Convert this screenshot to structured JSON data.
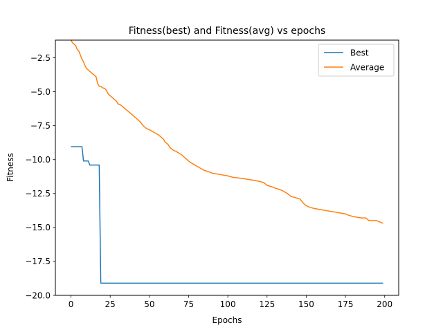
{
  "chart_data": {
    "type": "line",
    "title": "Fitness(best) and Fitness(avg) vs epochs",
    "xlabel": "Epochs",
    "ylabel": "Fitness",
    "xlim": [
      -9.95,
      208.95
    ],
    "ylim": [
      -20.0,
      -1.2
    ],
    "xticks": [
      0,
      25,
      50,
      75,
      100,
      125,
      150,
      175,
      200
    ],
    "yticks": [
      -20.0,
      -17.5,
      -15.0,
      -12.5,
      -10.0,
      -7.5,
      -5.0,
      -2.5
    ],
    "ytick_labels": [
      "−20.0",
      "−17.5",
      "−15.0",
      "−12.5",
      "−10.0",
      "−7.5",
      "−5.0",
      "−2.5"
    ],
    "grid": false,
    "legend_position": "top-right",
    "series": [
      {
        "name": "Best",
        "color": "#1f77b4",
        "x": [
          0,
          7,
          8,
          11,
          12,
          18,
          19,
          199
        ],
        "y": [
          -9.05,
          -9.05,
          -10.1,
          -10.1,
          -10.4,
          -10.4,
          -19.1,
          -19.1
        ]
      },
      {
        "name": "Average",
        "color": "#ff7f0e",
        "x": [
          0,
          1,
          2,
          3,
          4,
          5,
          6,
          7,
          8,
          9,
          10,
          11,
          12,
          13,
          14,
          15,
          16,
          17,
          18,
          19,
          20,
          22,
          24,
          25,
          27,
          29,
          30,
          32,
          34,
          36,
          38,
          40,
          42,
          44,
          46,
          48,
          50,
          53,
          56,
          59,
          60,
          62,
          63,
          65,
          67,
          70,
          73,
          76,
          79,
          82,
          85,
          88,
          90,
          95,
          100,
          103,
          110,
          115,
          120,
          123,
          125,
          128,
          130,
          133,
          135,
          138,
          140,
          143,
          146,
          148,
          150,
          152,
          155,
          160,
          165,
          170,
          175,
          177,
          180,
          185,
          188,
          190,
          195,
          197,
          199
        ],
        "y": [
          -1.2,
          -1.4,
          -1.5,
          -1.6,
          -1.9,
          -2.0,
          -2.3,
          -2.6,
          -2.8,
          -3.1,
          -3.3,
          -3.4,
          -3.5,
          -3.6,
          -3.7,
          -3.8,
          -3.9,
          -4.4,
          -4.6,
          -4.6,
          -4.7,
          -4.8,
          -5.2,
          -5.3,
          -5.5,
          -5.7,
          -5.9,
          -6.0,
          -6.2,
          -6.4,
          -6.6,
          -6.8,
          -7.0,
          -7.2,
          -7.5,
          -7.7,
          -7.8,
          -8.0,
          -8.2,
          -8.5,
          -8.7,
          -8.9,
          -9.1,
          -9.3,
          -9.4,
          -9.6,
          -9.9,
          -10.2,
          -10.4,
          -10.6,
          -10.8,
          -10.9,
          -11.0,
          -11.1,
          -11.2,
          -11.3,
          -11.4,
          -11.5,
          -11.6,
          -11.7,
          -11.9,
          -12.0,
          -12.1,
          -12.2,
          -12.3,
          -12.5,
          -12.7,
          -12.8,
          -12.9,
          -13.2,
          -13.4,
          -13.5,
          -13.6,
          -13.7,
          -13.8,
          -13.9,
          -14.0,
          -14.1,
          -14.2,
          -14.3,
          -14.3,
          -14.5,
          -14.5,
          -14.6,
          -14.7
        ]
      }
    ]
  }
}
